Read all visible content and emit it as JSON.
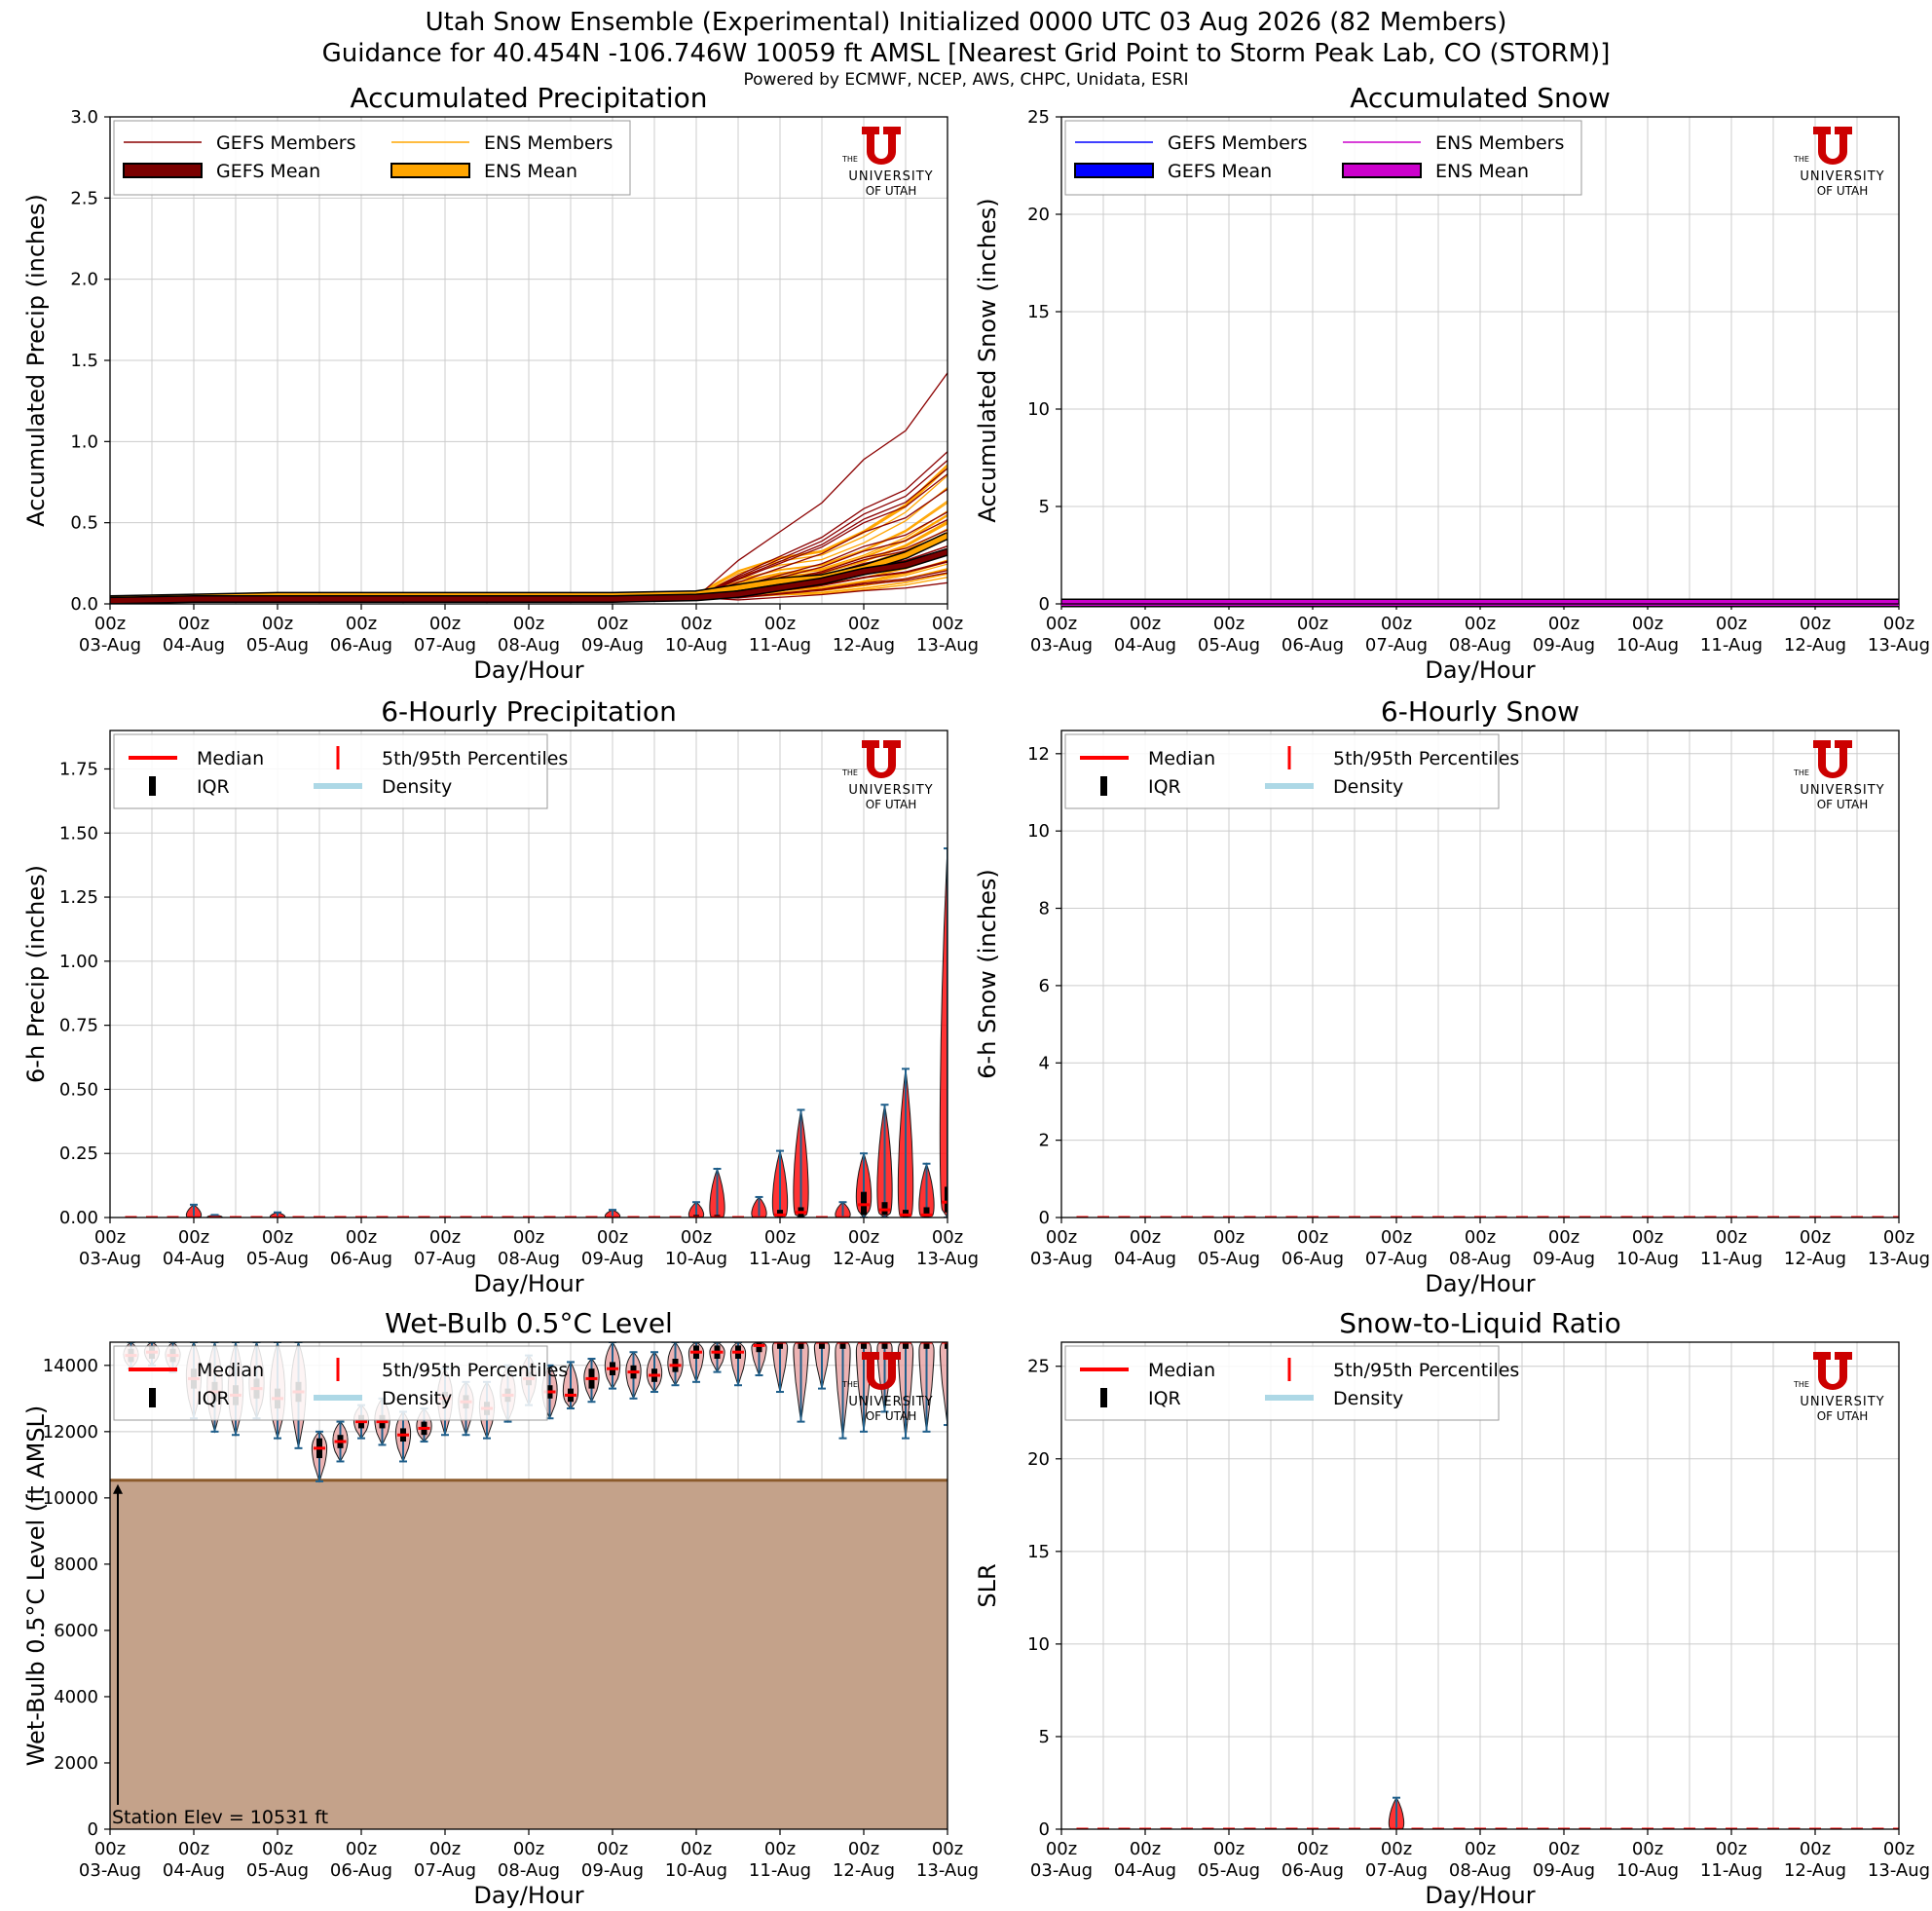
{
  "header": {
    "title_line1": "Utah Snow Ensemble (Experimental) Initialized 0000 UTC 03 Aug 2026 (82 Members)",
    "title_line2": "Guidance for 40.454N -106.746W 10059 ft AMSL [Nearest Grid Point to Storm Peak Lab, CO (STORM)]",
    "title_line3": "Powered by ECMWF, NCEP, AWS, CHPC, Unidata, ESRI"
  },
  "logo": {
    "line1": "THE",
    "line2": "UNIVERSITY",
    "line3": "OF UTAH",
    "color": "#cc0000"
  },
  "x_axis": {
    "hour_labels": [
      "00z",
      "00z",
      "00z",
      "00z",
      "00z",
      "00z",
      "00z",
      "00z",
      "00z",
      "00z",
      "00z"
    ],
    "date_labels": [
      "03-Aug",
      "04-Aug",
      "05-Aug",
      "06-Aug",
      "07-Aug",
      "08-Aug",
      "09-Aug",
      "10-Aug",
      "11-Aug",
      "12-Aug",
      "13-Aug"
    ],
    "xlabel": "Day/Hour"
  },
  "colors": {
    "gefs_member": "#8b0000",
    "gefs_mean": "#7a0000",
    "ens_member": "#ffa500",
    "ens_mean": "#ffa500",
    "gefs_snow": "#0000ff",
    "ens_snow": "#cc00cc",
    "violin_edge": "#1f5f8b",
    "median": "#ff0000",
    "density": "#add8e6",
    "terrain_fill": "#c4a28a",
    "terrain_line": "#8b5a2b"
  },
  "chart_data": [
    {
      "id": "accum_precip",
      "type": "line",
      "title": "Accumulated Precipitation",
      "xlabel": "Day/Hour",
      "ylabel": "Accumulated Precip (inches)",
      "xlim": [
        0,
        240
      ],
      "ylim": [
        0,
        3.0
      ],
      "yticks": [
        "0.0",
        "0.5",
        "1.0",
        "1.5",
        "2.0",
        "2.5",
        "3.0"
      ],
      "grid": true,
      "legend": {
        "placement": "top-left",
        "entries": [
          "GEFS Members",
          "ENS Members",
          "GEFS Mean",
          "ENS Mean"
        ]
      },
      "series": [
        {
          "name": "ENS Mean",
          "x": [
            0,
            24,
            48,
            72,
            96,
            120,
            144,
            168,
            180,
            192,
            204,
            216,
            228,
            240
          ],
          "values": [
            0.03,
            0.04,
            0.05,
            0.05,
            0.05,
            0.05,
            0.05,
            0.06,
            0.1,
            0.14,
            0.16,
            0.22,
            0.3,
            0.42
          ]
        },
        {
          "name": "GEFS Mean",
          "x": [
            0,
            24,
            48,
            72,
            96,
            120,
            144,
            168,
            180,
            192,
            204,
            216,
            228,
            240
          ],
          "values": [
            0.02,
            0.03,
            0.03,
            0.03,
            0.03,
            0.03,
            0.03,
            0.04,
            0.06,
            0.1,
            0.14,
            0.2,
            0.24,
            0.32
          ]
        }
      ]
    },
    {
      "id": "accum_snow",
      "type": "line",
      "title": "Accumulated Snow",
      "xlabel": "Day/Hour",
      "ylabel": "Accumulated Snow (inches)",
      "xlim": [
        0,
        240
      ],
      "ylim": [
        0,
        25
      ],
      "yticks": [
        "0",
        "5",
        "10",
        "15",
        "20",
        "25"
      ],
      "grid": true,
      "legend": {
        "placement": "top-left",
        "entries": [
          "GEFS Members",
          "ENS Members",
          "GEFS Mean",
          "ENS Mean"
        ]
      },
      "series": [
        {
          "name": "GEFS Mean",
          "x": [
            0,
            240
          ],
          "values": [
            0,
            0
          ]
        },
        {
          "name": "ENS Mean",
          "x": [
            0,
            240
          ],
          "values": [
            0,
            0
          ]
        }
      ]
    },
    {
      "id": "precip_6h",
      "type": "violin",
      "title": "6-Hourly Precipitation",
      "xlabel": "Day/Hour",
      "ylabel": "6-h Precip (inches)",
      "xlim": [
        0,
        240
      ],
      "ylim": [
        0,
        1.9
      ],
      "yticks": [
        "0.00",
        "0.25",
        "0.50",
        "0.75",
        "1.00",
        "1.25",
        "1.50",
        "1.75"
      ],
      "grid": true,
      "legend": {
        "placement": "top-left",
        "entries": [
          "Median",
          "5th/95th Percentiles",
          "IQR",
          "Density"
        ]
      },
      "x": [
        6,
        12,
        18,
        24,
        30,
        36,
        42,
        48,
        54,
        60,
        66,
        72,
        78,
        84,
        90,
        96,
        102,
        108,
        114,
        120,
        126,
        132,
        138,
        144,
        150,
        156,
        162,
        168,
        174,
        180,
        186,
        192,
        198,
        204,
        210,
        216,
        222,
        228,
        234,
        240
      ],
      "p95": [
        0.0,
        0.0,
        0.0,
        0.05,
        0.01,
        0.0,
        0.0,
        0.02,
        0.0,
        0.0,
        0.0,
        0.0,
        0.0,
        0.0,
        0.0,
        0.0,
        0.0,
        0.0,
        0.0,
        0.0,
        0.0,
        0.0,
        0.0,
        0.03,
        0.0,
        0.0,
        0.0,
        0.06,
        0.19,
        0.0,
        0.08,
        0.26,
        0.42,
        0.0,
        0.06,
        0.25,
        0.44,
        0.58,
        0.21,
        1.44
      ],
      "q75": [
        0,
        0,
        0,
        0,
        0,
        0,
        0,
        0,
        0,
        0,
        0,
        0,
        0,
        0,
        0,
        0,
        0,
        0,
        0,
        0,
        0,
        0,
        0,
        0,
        0,
        0,
        0,
        0.01,
        0.01,
        0,
        0,
        0.03,
        0.04,
        0,
        0,
        0.1,
        0.06,
        0.03,
        0.04,
        0.12
      ],
      "median": [
        0,
        0,
        0,
        0,
        0,
        0,
        0,
        0,
        0,
        0,
        0,
        0,
        0,
        0,
        0,
        0,
        0,
        0,
        0,
        0,
        0,
        0,
        0,
        0,
        0,
        0,
        0,
        0,
        0,
        0,
        0,
        0.01,
        0.02,
        0,
        0,
        0.05,
        0.03,
        0.01,
        0.01,
        0.06
      ],
      "q25": [
        0,
        0,
        0,
        0,
        0,
        0,
        0,
        0,
        0,
        0,
        0,
        0,
        0,
        0,
        0,
        0,
        0,
        0,
        0,
        0,
        0,
        0,
        0,
        0,
        0,
        0,
        0,
        0,
        0,
        0,
        0,
        0,
        0,
        0,
        0,
        0.01,
        0.01,
        0,
        0,
        0.02
      ],
      "p05": [
        0,
        0,
        0,
        0,
        0,
        0,
        0,
        0,
        0,
        0,
        0,
        0,
        0,
        0,
        0,
        0,
        0,
        0,
        0,
        0,
        0,
        0,
        0,
        0,
        0,
        0,
        0,
        0,
        0,
        0,
        0,
        0,
        0,
        0,
        0,
        0,
        0,
        0,
        0,
        0
      ]
    },
    {
      "id": "snow_6h",
      "type": "violin",
      "title": "6-Hourly Snow",
      "xlabel": "Day/Hour",
      "ylabel": "6-h Snow (inches)",
      "xlim": [
        0,
        240
      ],
      "ylim": [
        0,
        12.6
      ],
      "yticks": [
        "0",
        "2",
        "4",
        "6",
        "8",
        "10",
        "12"
      ],
      "grid": true,
      "legend": {
        "placement": "top-left",
        "entries": [
          "Median",
          "5th/95th Percentiles",
          "IQR",
          "Density"
        ]
      },
      "x": [
        6,
        12,
        18,
        24,
        30,
        36,
        42,
        48,
        54,
        60,
        66,
        72,
        78,
        84,
        90,
        96,
        102,
        108,
        114,
        120,
        126,
        132,
        138,
        144,
        150,
        156,
        162,
        168,
        174,
        180,
        186,
        192,
        198,
        204,
        210,
        216,
        222,
        228,
        234,
        240
      ],
      "median": [
        0,
        0,
        0,
        0,
        0,
        0,
        0,
        0,
        0,
        0,
        0,
        0,
        0,
        0,
        0,
        0,
        0,
        0,
        0,
        0,
        0,
        0,
        0,
        0,
        0,
        0,
        0,
        0,
        0,
        0,
        0,
        0,
        0,
        0,
        0,
        0,
        0,
        0,
        0,
        0
      ]
    },
    {
      "id": "wetbulb",
      "type": "violin",
      "title": "Wet-Bulb 0.5°C Level",
      "xlabel": "Day/Hour",
      "ylabel": "Wet-Bulb 0.5°C Level (ft AMSL)",
      "xlim": [
        0,
        240
      ],
      "ylim": [
        0,
        14700
      ],
      "yticks": [
        "0",
        "2000",
        "4000",
        "6000",
        "8000",
        "10000",
        "12000",
        "14000"
      ],
      "grid": true,
      "station_elev": 10531,
      "station_label": "Station Elev = 10531 ft",
      "legend": {
        "placement": "top-left",
        "entries": [
          "Median",
          "5th/95th Percentiles",
          "IQR",
          "Density"
        ]
      },
      "x": [
        6,
        12,
        18,
        24,
        30,
        36,
        42,
        48,
        54,
        60,
        66,
        72,
        78,
        84,
        90,
        96,
        102,
        108,
        114,
        120,
        126,
        132,
        138,
        144,
        150,
        156,
        162,
        168,
        174,
        180,
        186,
        192,
        198,
        204,
        210,
        216,
        222,
        228,
        234,
        240
      ],
      "median": [
        14300,
        14400,
        14300,
        13600,
        13200,
        13100,
        13300,
        13000,
        13200,
        11500,
        11700,
        12300,
        12300,
        11900,
        12100,
        13000,
        12900,
        12700,
        13100,
        13600,
        13200,
        13100,
        13600,
        13900,
        13800,
        13700,
        14000,
        14400,
        14400,
        14400,
        14600,
        14700,
        14700,
        14700,
        14700,
        14700,
        14700,
        14700,
        14700,
        14700
      ],
      "q25": [
        14100,
        14200,
        14100,
        13300,
        12900,
        12800,
        13000,
        12700,
        12900,
        11200,
        11500,
        12100,
        12100,
        11700,
        11900,
        12800,
        12700,
        12500,
        12900,
        13400,
        13000,
        12900,
        13300,
        13700,
        13600,
        13500,
        13800,
        14200,
        14200,
        14200,
        14400,
        14500,
        14500,
        14500,
        14500,
        14500,
        14500,
        14500,
        14500,
        14500
      ],
      "q75": [
        14500,
        14600,
        14500,
        13900,
        13500,
        13400,
        13600,
        13300,
        13500,
        11800,
        11900,
        12500,
        12500,
        12100,
        12300,
        13200,
        13100,
        12900,
        13300,
        13800,
        13400,
        13300,
        13900,
        14100,
        14000,
        13900,
        14200,
        14600,
        14600,
        14600,
        14700,
        14700,
        14700,
        14700,
        14700,
        14700,
        14700,
        14700,
        14700,
        14700
      ],
      "p05": [
        13900,
        14000,
        13800,
        12400,
        12000,
        11900,
        12400,
        11800,
        11500,
        10500,
        11100,
        11800,
        11600,
        11100,
        11700,
        11900,
        11900,
        11800,
        12300,
        12800,
        12400,
        12700,
        12900,
        13300,
        13000,
        13200,
        13400,
        13500,
        13800,
        13400,
        13700,
        13200,
        12300,
        13300,
        11800,
        12000,
        12600,
        11800,
        12000,
        12200
      ],
      "p95": [
        14700,
        14700,
        14700,
        14700,
        14700,
        14700,
        14700,
        14700,
        14700,
        12000,
        12300,
        12800,
        13000,
        12600,
        12700,
        13900,
        13500,
        13500,
        14000,
        14300,
        14000,
        14100,
        14200,
        14700,
        14400,
        14400,
        14700,
        14700,
        14700,
        14700,
        14700,
        14700,
        14700,
        14700,
        14700,
        14700,
        14700,
        14700,
        14700,
        14700
      ]
    },
    {
      "id": "slr",
      "type": "violin",
      "title": "Snow-to-Liquid Ratio",
      "xlabel": "Day/Hour",
      "ylabel": "SLR",
      "xlim": [
        0,
        240
      ],
      "ylim": [
        0,
        26.3
      ],
      "yticks": [
        "0",
        "5",
        "10",
        "15",
        "20",
        "25"
      ],
      "grid": true,
      "legend": {
        "placement": "top-left",
        "entries": [
          "Median",
          "5th/95th Percentiles",
          "IQR",
          "Density"
        ]
      },
      "x": [
        6,
        12,
        18,
        24,
        30,
        36,
        42,
        48,
        54,
        60,
        66,
        72,
        78,
        84,
        90,
        96,
        102,
        108,
        114,
        120,
        126,
        132,
        138,
        144,
        150,
        156,
        162,
        168,
        174,
        180,
        186,
        192,
        198,
        204,
        210,
        216,
        222,
        228,
        234,
        240
      ],
      "median": [
        0,
        0,
        0,
        0,
        0,
        0,
        0,
        0,
        0,
        0,
        0,
        0,
        0,
        0,
        0,
        0,
        0,
        0,
        0,
        0,
        0,
        0,
        0,
        0,
        0,
        0,
        0,
        0,
        0,
        0,
        0,
        0,
        0,
        0,
        0,
        0,
        0,
        0,
        0,
        0
      ],
      "p95": [
        0,
        0,
        0,
        0,
        0,
        0,
        0,
        0,
        0,
        0,
        0,
        0,
        0,
        0,
        0,
        1.7,
        0,
        0,
        0,
        0,
        0,
        0,
        0,
        0,
        0,
        0,
        0,
        0,
        0,
        0,
        0,
        0,
        0,
        0,
        0,
        0,
        0,
        0,
        0,
        0
      ]
    }
  ]
}
